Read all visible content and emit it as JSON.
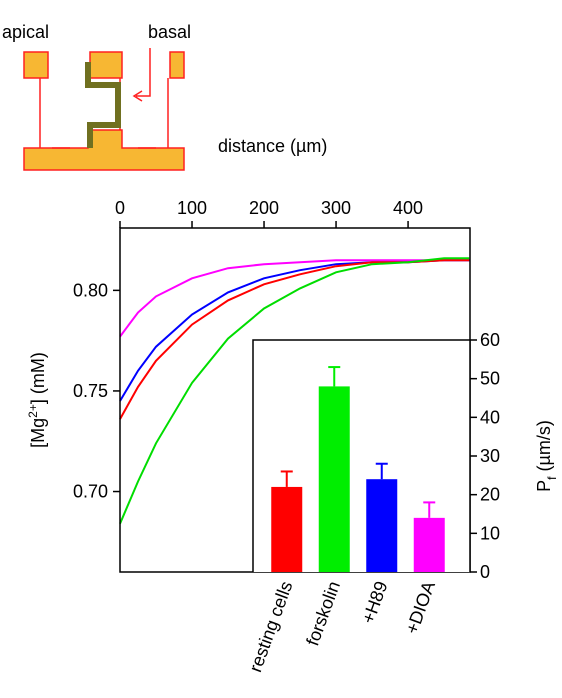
{
  "diagram_labels": [
    "apical",
    "basal"
  ],
  "chart_data": [
    {
      "type": "line",
      "xlabel": "distance (µm)",
      "ylabel_parts": [
        "[Mg",
        "2+",
        "] (mM)"
      ],
      "x": [
        0,
        25,
        50,
        100,
        150,
        200,
        250,
        300,
        350,
        400,
        450,
        485
      ],
      "series": [
        {
          "color": "#ff00ff",
          "values": [
            0.777,
            0.789,
            0.797,
            0.806,
            0.811,
            0.813,
            0.814,
            0.815,
            0.815,
            0.815,
            0.815,
            0.815
          ]
        },
        {
          "color": "#0000ff",
          "values": [
            0.745,
            0.76,
            0.772,
            0.788,
            0.799,
            0.806,
            0.81,
            0.813,
            0.814,
            0.814,
            0.815,
            0.815
          ]
        },
        {
          "color": "#ff0000",
          "values": [
            0.736,
            0.752,
            0.765,
            0.783,
            0.795,
            0.803,
            0.808,
            0.812,
            0.814,
            0.814,
            0.815,
            0.815
          ]
        },
        {
          "color": "#00dd00",
          "values": [
            0.684,
            0.705,
            0.724,
            0.754,
            0.776,
            0.791,
            0.801,
            0.809,
            0.813,
            0.814,
            0.816,
            0.816
          ]
        }
      ],
      "xlim": [
        0,
        486
      ],
      "xticks": [
        0,
        100,
        200,
        300,
        400
      ],
      "ylim": [
        0.66,
        0.831
      ],
      "yticks": [
        {
          "value": 0.7,
          "label": "0.70"
        },
        {
          "value": 0.75,
          "label": "0.75"
        },
        {
          "value": 0.8,
          "label": "0.80"
        }
      ]
    },
    {
      "type": "bar",
      "ylabel_parts": [
        "P",
        "f",
        " (µm/s)"
      ],
      "categories": [
        "resting cells",
        "forskolin",
        "+H89",
        "+DIOA"
      ],
      "values": [
        22,
        48,
        24,
        14
      ],
      "errors": [
        4,
        5,
        4,
        4
      ],
      "colors": [
        "#ff0000",
        "#00ee00",
        "#0000ff",
        "#ff00ff"
      ],
      "ylim": [
        0,
        60
      ],
      "yticks": [
        0,
        10,
        20,
        30,
        40,
        50,
        60
      ]
    }
  ]
}
